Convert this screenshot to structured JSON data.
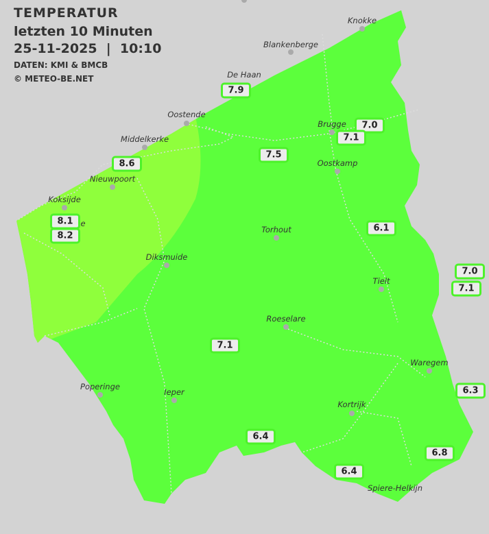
{
  "header": {
    "title": "TEMPERATUR",
    "subtitle": "letzten 10 Minuten",
    "datetime": "25-11-2025  |  10:10",
    "source": "DATEN: KMI & BMCB",
    "copyright": "© METEO-BE.NET"
  },
  "colors": {
    "background": "#d3d3d3",
    "temp_7": "#5cff3c",
    "temp_8": "#8fff3c",
    "label_border": "#4df22a"
  },
  "cities": [
    "Knokke",
    "Blankenberge",
    "De Haan",
    "Oostende",
    "Middelkerke",
    "Nieuwpoort",
    "Koksijde",
    "e",
    "Brugge",
    "Oostkamp",
    "Torhout",
    "Diksmuide",
    "Tielt",
    "Roeselare",
    "Waregem",
    "Poperinge",
    "Ieper",
    "Kortrijk",
    "Spiere-Helkijn"
  ],
  "readings": [
    "7.9",
    "7.0",
    "7.1",
    "8.6",
    "7.5",
    "8.1",
    "8.2",
    "6.1",
    "7.0",
    "7.1",
    "7.1",
    "6.3",
    "6.4",
    "6.8",
    "6.4"
  ]
}
